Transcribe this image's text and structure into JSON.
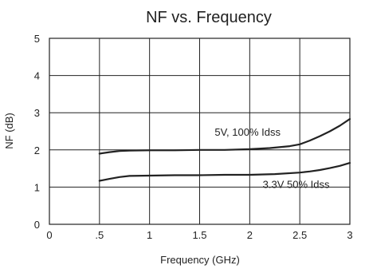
{
  "chart_data": {
    "type": "line",
    "title": "NF vs. Frequency",
    "xlabel": "Frequency (GHz)",
    "ylabel": "NF (dB)",
    "xlim": [
      0,
      3
    ],
    "ylim": [
      0,
      5
    ],
    "grid": true,
    "x_ticks": [
      {
        "value": 0,
        "label": "0"
      },
      {
        "value": 0.5,
        "label": ".5"
      },
      {
        "value": 1,
        "label": "1"
      },
      {
        "value": 1.5,
        "label": "1.5"
      },
      {
        "value": 2,
        "label": "2"
      },
      {
        "value": 2.5,
        "label": "2.5"
      },
      {
        "value": 3,
        "label": "3"
      }
    ],
    "y_ticks": [
      {
        "value": 0,
        "label": "0"
      },
      {
        "value": 1,
        "label": "1"
      },
      {
        "value": 2,
        "label": "2"
      },
      {
        "value": 3,
        "label": "3"
      },
      {
        "value": 4,
        "label": "4"
      },
      {
        "value": 5,
        "label": "5"
      }
    ],
    "series": [
      {
        "name": "5V, 100% Idss",
        "color": "#222222",
        "points": [
          [
            0.5,
            1.9
          ],
          [
            0.6,
            1.94
          ],
          [
            0.7,
            1.97
          ],
          [
            0.8,
            1.98
          ],
          [
            1.0,
            1.99
          ],
          [
            1.25,
            1.99
          ],
          [
            1.5,
            2.0
          ],
          [
            1.75,
            2.0
          ],
          [
            2.0,
            2.02
          ],
          [
            2.2,
            2.05
          ],
          [
            2.4,
            2.1
          ],
          [
            2.5,
            2.15
          ],
          [
            2.6,
            2.25
          ],
          [
            2.7,
            2.37
          ],
          [
            2.8,
            2.5
          ],
          [
            2.9,
            2.65
          ],
          [
            3.0,
            2.83
          ]
        ]
      },
      {
        "name": "3.3V 50% Idss",
        "color": "#222222",
        "points": [
          [
            0.5,
            1.17
          ],
          [
            0.6,
            1.22
          ],
          [
            0.7,
            1.27
          ],
          [
            0.8,
            1.3
          ],
          [
            1.0,
            1.31
          ],
          [
            1.25,
            1.32
          ],
          [
            1.5,
            1.32
          ],
          [
            1.75,
            1.33
          ],
          [
            2.0,
            1.33
          ],
          [
            2.25,
            1.35
          ],
          [
            2.5,
            1.39
          ],
          [
            2.6,
            1.42
          ],
          [
            2.7,
            1.46
          ],
          [
            2.8,
            1.51
          ],
          [
            2.9,
            1.57
          ],
          [
            3.0,
            1.65
          ]
        ]
      }
    ],
    "annotations": [
      {
        "text": "5V, 100% Idss",
        "x": 1.65,
        "y": 2.38
      },
      {
        "text": "3.3V 50% Idss",
        "x": 2.13,
        "y": 0.98
      }
    ]
  }
}
